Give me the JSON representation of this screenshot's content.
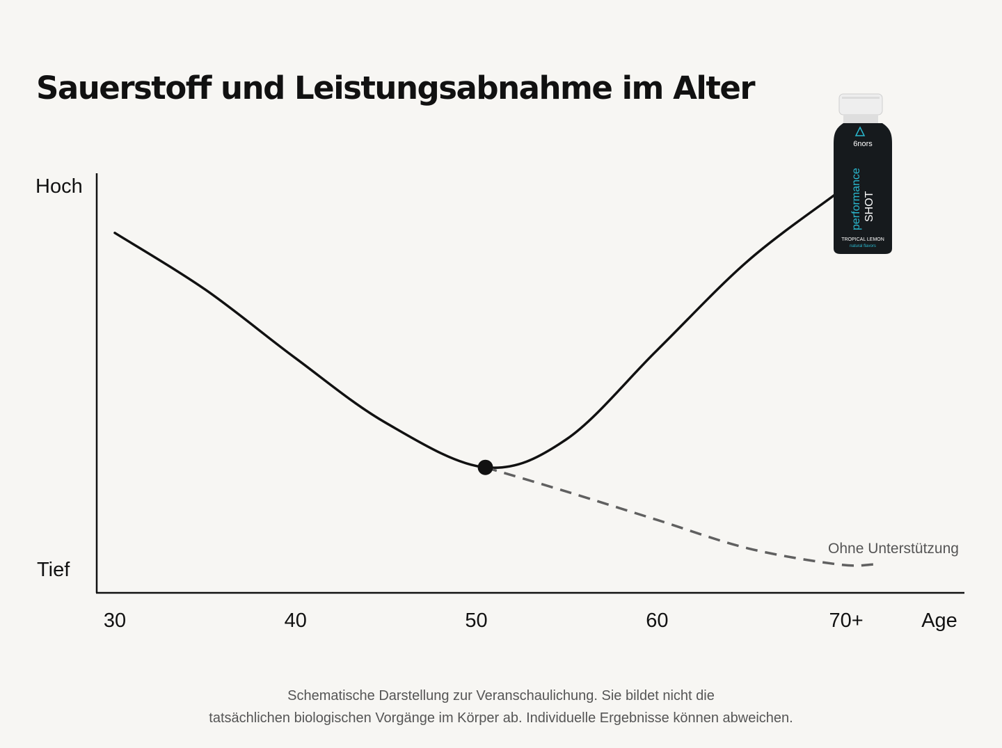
{
  "title": "Sauerstoff und Leistungsabnahme im Alter",
  "chart_data": {
    "type": "line",
    "title": "Sauerstoff und Leistungsabnahme im Alter",
    "xlabel": "Age",
    "ylabel": "",
    "x_ticks": [
      "30",
      "40",
      "50",
      "60",
      "70+"
    ],
    "y_ticks": [
      "Tief",
      "Hoch"
    ],
    "xlim": [
      29,
      77
    ],
    "ylim": [
      0,
      1
    ],
    "series": [
      {
        "style": "solid",
        "x": [
          30,
          35,
          40,
          45,
          50.5,
          55,
          60,
          65,
          70,
          71.5
        ],
        "y": [
          0.88,
          0.74,
          0.57,
          0.41,
          0.3,
          0.37,
          0.59,
          0.81,
          0.98,
          1.03
        ],
        "end_marker": "arrow",
        "color": "#111111"
      },
      {
        "name": "Ohne Unterstützung",
        "style": "dashed",
        "x": [
          50.5,
          55,
          60,
          65,
          70,
          72
        ],
        "y": [
          0.3,
          0.24,
          0.17,
          0.1,
          0.06,
          0.06
        ],
        "color": "#606060"
      }
    ],
    "annotations": [
      {
        "type": "point",
        "x": 50.5,
        "y": 0.3,
        "label": ""
      }
    ]
  },
  "product": {
    "brand": "6nors",
    "line1": "performance",
    "line2": "SHOT",
    "flavor": "TROPICAL LEMON",
    "sub": "natural flavors",
    "colors": {
      "body": "#161a1d",
      "cap": "#eeeeee",
      "accent": "#2ab9d0"
    }
  },
  "footnote": {
    "line1": "Schematische Darstellung zur Veranschaulichung. Sie bildet nicht die",
    "line2": "tatsächlichen biologischen Vorgänge im Körper ab. Individuelle Ergebnisse können abweichen."
  }
}
